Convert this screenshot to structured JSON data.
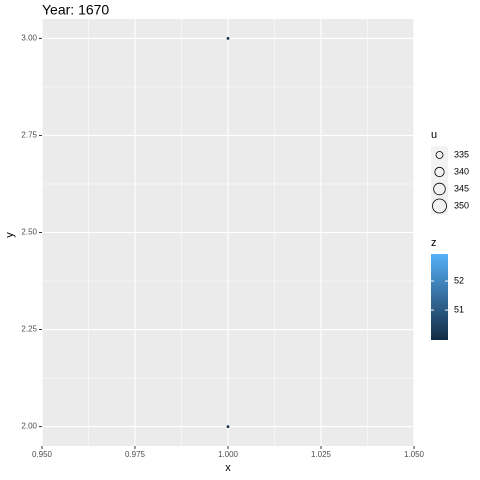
{
  "chart_data": {
    "type": "scatter",
    "title": "Year: 1670",
    "x_label": "x",
    "y_label": "y",
    "x": [
      1,
      1
    ],
    "y": [
      3,
      2
    ],
    "u": [
      326,
      326
    ],
    "z": [
      50,
      50
    ],
    "xlim": [
      0.95,
      1.05
    ],
    "xticks": [
      {
        "value": 0.95,
        "label": "0.950"
      },
      {
        "value": 0.975,
        "label": "0.975"
      },
      {
        "value": 1,
        "label": "1.000"
      },
      {
        "value": 1.025,
        "label": "1.025"
      },
      {
        "value": 1.05,
        "label": "1.050"
      }
    ],
    "ylim": [
      1.95,
      3.05
    ],
    "yticks": [
      {
        "value": 2,
        "label": "2.00"
      },
      {
        "value": 2.25,
        "label": "2.25"
      },
      {
        "value": 2.5,
        "label": "2.50"
      },
      {
        "value": 2.75,
        "label": "2.75"
      },
      {
        "value": 3,
        "label": "3.00"
      }
    ],
    "grid": true,
    "size_legend": {
      "title": "u",
      "breaks": [
        335,
        340,
        345,
        350
      ]
    },
    "color_legend": {
      "title": "z",
      "zlim": [
        49.97,
        52.93
      ],
      "breaks": [
        51,
        52
      ],
      "low": "#132B43",
      "high": "#56B1F7"
    }
  }
}
